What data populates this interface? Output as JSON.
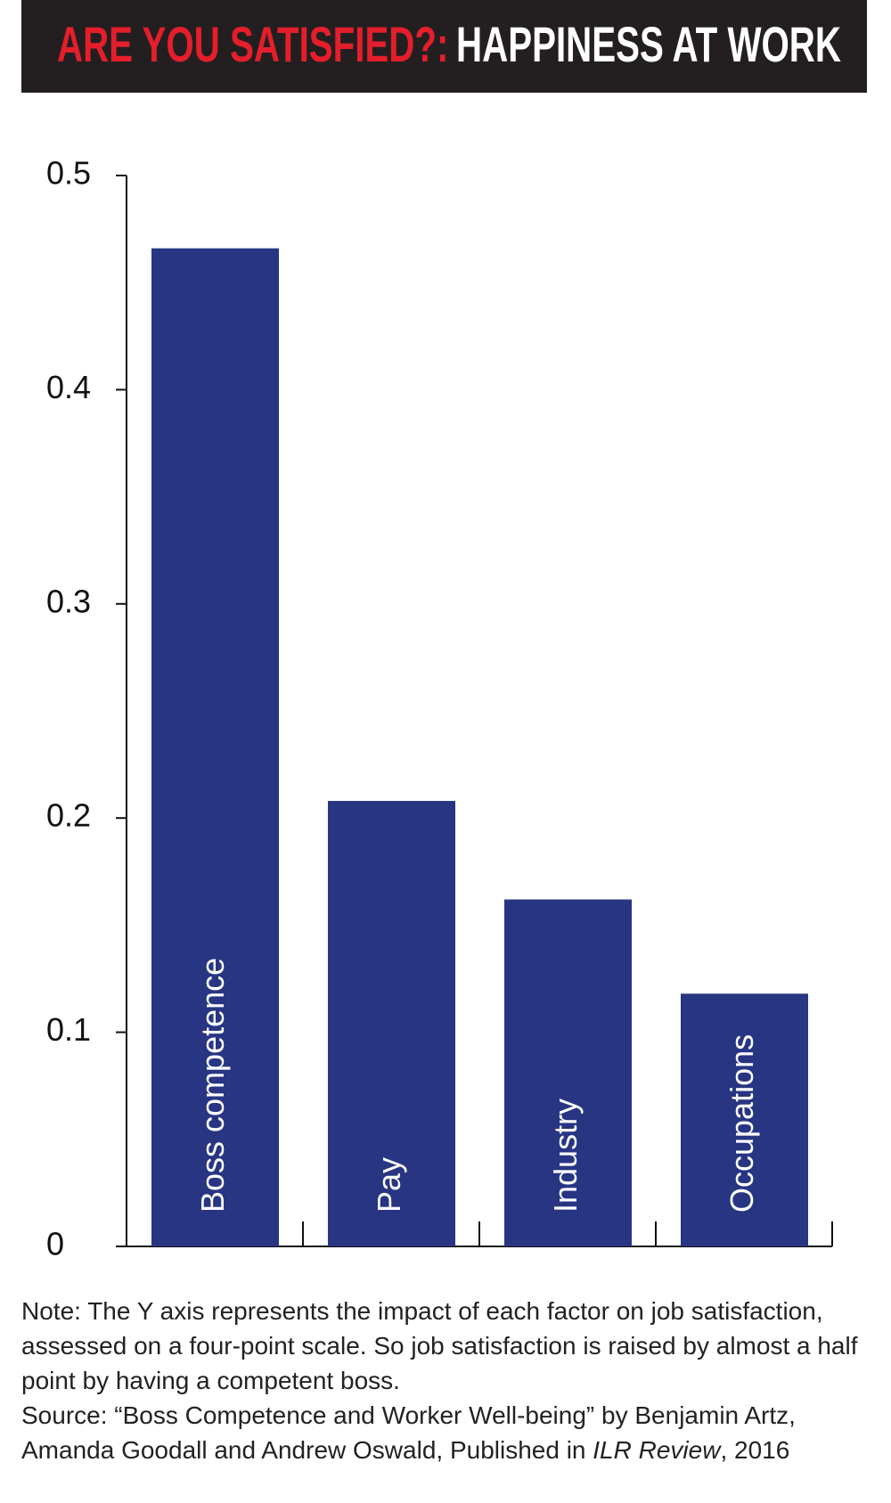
{
  "chart_data": {
    "type": "bar",
    "title_prefix": "ARE YOU SATISFIED?:",
    "title": "HAPPINESS AT WORK",
    "categories": [
      "Boss competence",
      "Pay",
      "Industry",
      "Occupations"
    ],
    "values": [
      0.466,
      0.208,
      0.162,
      0.118
    ],
    "color": "#283583",
    "ylim": [
      0,
      0.5
    ],
    "yticks": [
      0,
      0.1,
      0.2,
      0.3,
      0.4,
      0.5
    ],
    "grid": false,
    "note": "Note: The Y axis represents the impact of each factor on job satisfaction, assessed on a four-point scale. So job satisfaction is raised by almost a half point by having a competent boss.",
    "source": {
      "text": "Source: “Boss Competence and Worker Well-being” by Benjamin Artz, Amanda Goodall and Andrew Oswald, Published in",
      "journal": "ILR Review",
      "year": ", 2016"
    }
  }
}
